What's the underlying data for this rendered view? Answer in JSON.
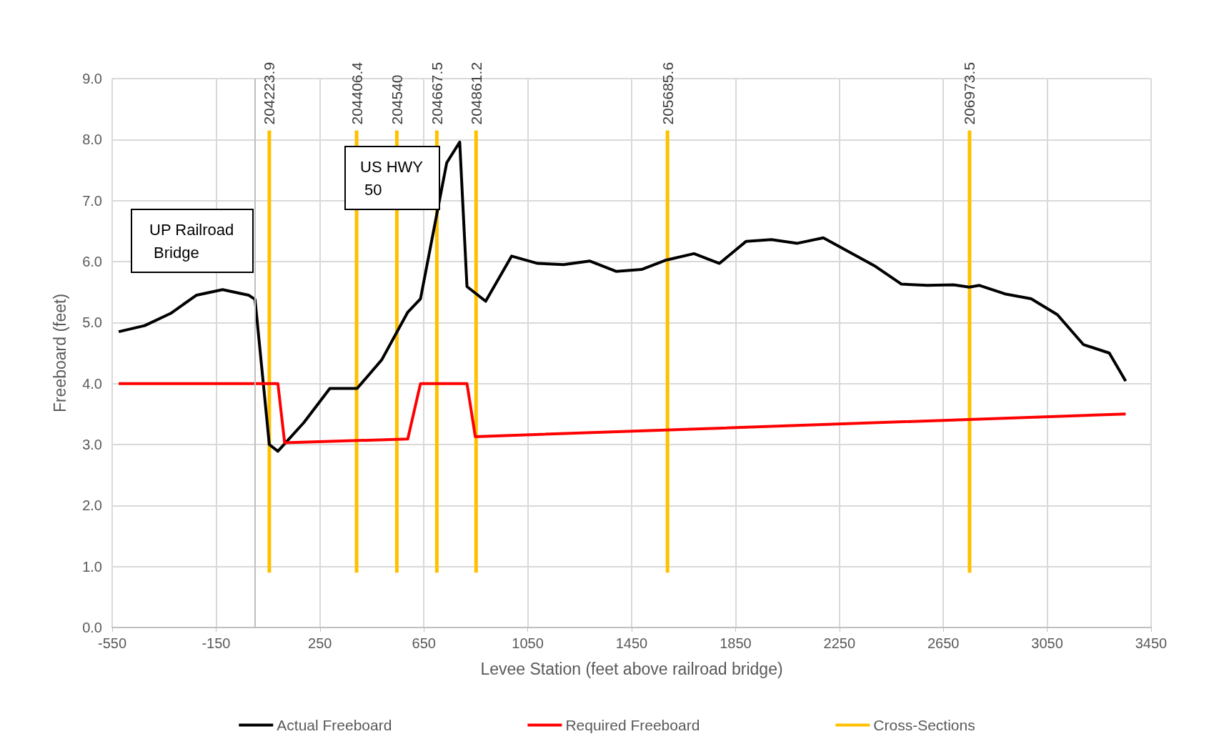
{
  "chart_data": {
    "type": "line",
    "xlabel": "Levee Station (feet above railroad bridge)",
    "ylabel": "Freeboard (feet)",
    "xlim": [
      -550,
      3450
    ],
    "xticks": [
      -550,
      -150,
      250,
      650,
      1050,
      1450,
      1850,
      2250,
      2650,
      3050,
      3450
    ],
    "ylim": [
      0,
      9
    ],
    "yticks": [
      {
        "value": 0,
        "label": "0.0"
      },
      {
        "value": 1,
        "label": "1.0"
      },
      {
        "value": 2,
        "label": "2.0"
      },
      {
        "value": 3,
        "label": "3.0"
      },
      {
        "value": 4,
        "label": "4.0"
      },
      {
        "value": 5,
        "label": "5.0"
      },
      {
        "value": 6,
        "label": "6.0"
      },
      {
        "value": 7,
        "label": "7.0"
      },
      {
        "value": 8,
        "label": "8.0"
      },
      {
        "value": 9,
        "label": "9.0"
      }
    ],
    "grid": true,
    "legend": "bottom",
    "marker": "none",
    "line_style": "solid",
    "series": [
      {
        "name": "Actual Freeboard",
        "color": "#000000",
        "x": [
          -525,
          -425,
          -325,
          -225,
          -125,
          -25,
          0,
          55,
          88,
          188,
          288,
          393,
          488,
          588,
          637,
          738,
          788,
          816,
          888,
          988,
          1088,
          1188,
          1288,
          1390,
          1488,
          1579,
          1690,
          1788,
          1890,
          1988,
          2088,
          2188,
          2389,
          2489,
          2589,
          2689,
          2750,
          2789,
          2887,
          2988,
          3089,
          3189,
          3289,
          3352
        ],
        "values": [
          4.85,
          4.95,
          5.15,
          5.45,
          5.54,
          5.45,
          5.38,
          3.0,
          2.89,
          3.36,
          3.92,
          3.92,
          4.39,
          5.17,
          5.39,
          7.62,
          7.96,
          5.59,
          5.35,
          6.09,
          5.97,
          5.95,
          6.01,
          5.84,
          5.87,
          6.02,
          6.13,
          5.97,
          6.33,
          6.36,
          6.3,
          6.39,
          5.92,
          5.63,
          5.61,
          5.62,
          5.58,
          5.61,
          5.47,
          5.39,
          5.13,
          4.64,
          4.5,
          4.04
        ]
      },
      {
        "name": "Required Freeboard",
        "color": "#ff0000",
        "x": [
          -525,
          88,
          114,
          588,
          637,
          816,
          848,
          3352
        ],
        "values": [
          4.0,
          4.0,
          3.03,
          3.09,
          4.0,
          4.0,
          3.13,
          3.5
        ]
      },
      {
        "name": "Cross-Sections",
        "color": "#ffc000",
        "x": [
          55,
          55
        ],
        "values": [
          0.9,
          8.15
        ]
      },
      {
        "color": "#ffc000",
        "x": [
          391,
          391
        ],
        "values": [
          0.9,
          8.15
        ]
      },
      {
        "color": "#ffc000",
        "x": [
          546,
          546
        ],
        "values": [
          0.9,
          8.15
        ]
      },
      {
        "color": "#ffc000",
        "x": [
          700,
          700
        ],
        "values": [
          0.9,
          8.15
        ]
      },
      {
        "color": "#ffc000",
        "x": [
          851,
          851
        ],
        "values": [
          0.9,
          8.15
        ]
      },
      {
        "color": "#ffc000",
        "x": [
          1588,
          1588
        ],
        "values": [
          0.9,
          8.15
        ]
      },
      {
        "color": "#ffc000",
        "x": [
          2751,
          2751
        ],
        "values": [
          0.9,
          8.15
        ]
      }
    ],
    "ref_lines": [
      {
        "axis": "x",
        "value": 0,
        "color": "#bfbfbf"
      }
    ],
    "annotations": [
      "UP Railroad Bridge",
      "US HWY 50",
      {
        "text": "204223.9",
        "x": 55,
        "y": 8.15
      },
      {
        "text": "204406.4",
        "x": 391,
        "y": 8.15
      },
      {
        "text": "204540",
        "x": 546,
        "y": 8.15
      },
      {
        "text": "204667.5",
        "x": 700,
        "y": 8.15
      },
      {
        "text": "204861.2",
        "x": 851,
        "y": 8.15
      },
      {
        "text": "205685.6",
        "x": 1588,
        "y": 8.15
      },
      {
        "text": "206973.5",
        "x": 2751,
        "y": 8.15
      }
    ]
  }
}
